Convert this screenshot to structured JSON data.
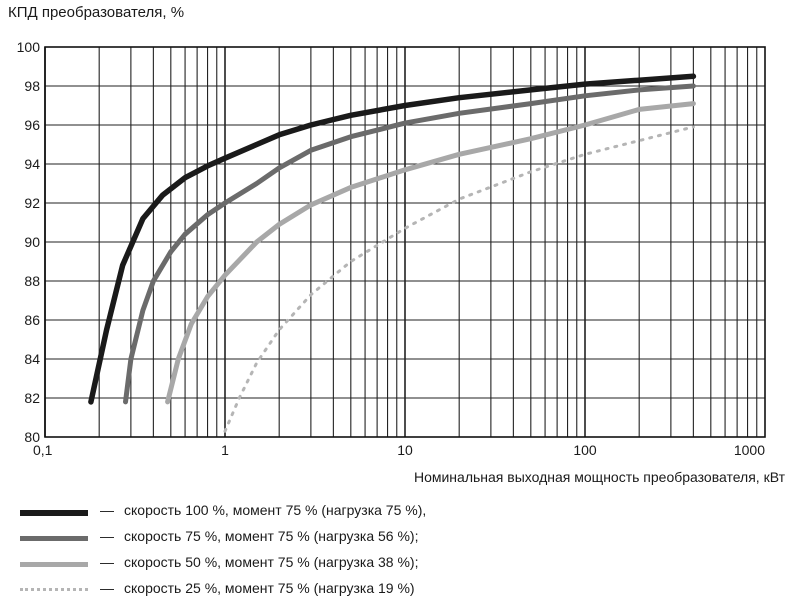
{
  "chart_data": {
    "type": "line",
    "title": "КПД преобразователя, %",
    "xlabel": "Номинальная выходная мощность преобразователя, кВт",
    "ylabel": "КПД преобразователя, %",
    "x_scale": "log",
    "xlim": [
      0.1,
      1000
    ],
    "ylim": [
      80,
      100
    ],
    "x_ticks": [
      "0,1",
      "1",
      "10",
      "100",
      "1000"
    ],
    "y_ticks": [
      "80",
      "82",
      "84",
      "86",
      "88",
      "90",
      "92",
      "94",
      "96",
      "98",
      "100"
    ],
    "grid": true,
    "legend_position": "bottom",
    "series": [
      {
        "name": "скорость  100 %, момент 75 % (нагрузка 75 %),",
        "color": "#1a1a1a",
        "style": "solid-thick",
        "x": [
          0.18,
          0.22,
          0.27,
          0.35,
          0.45,
          0.6,
          0.8,
          1,
          1.5,
          2,
          3,
          5,
          10,
          20,
          50,
          100,
          200,
          400
        ],
        "y": [
          81.8,
          85.5,
          88.8,
          91.2,
          92.4,
          93.3,
          93.9,
          94.3,
          95.0,
          95.5,
          96.0,
          96.5,
          97.0,
          97.4,
          97.8,
          98.1,
          98.3,
          98.5
        ]
      },
      {
        "name": "скорость  75 %, момент 75 % (нагрузка 56 %);",
        "color": "#6b6b6b",
        "style": "solid",
        "x": [
          0.28,
          0.3,
          0.35,
          0.4,
          0.5,
          0.6,
          0.8,
          1,
          1.5,
          2,
          3,
          5,
          10,
          20,
          50,
          100,
          200,
          400
        ],
        "y": [
          81.8,
          84.0,
          86.5,
          88.0,
          89.5,
          90.4,
          91.4,
          92.0,
          93.0,
          93.8,
          94.7,
          95.4,
          96.1,
          96.6,
          97.1,
          97.5,
          97.8,
          98.0
        ]
      },
      {
        "name": "скорость  50 %, момент 75 % (нагрузка 38 %);",
        "color": "#a8a8a8",
        "style": "solid",
        "x": [
          0.48,
          0.55,
          0.65,
          0.8,
          1,
          1.5,
          2,
          3,
          5,
          10,
          20,
          50,
          100,
          200,
          400
        ],
        "y": [
          81.8,
          84.0,
          85.8,
          87.2,
          88.3,
          90.0,
          90.9,
          91.9,
          92.8,
          93.7,
          94.5,
          95.3,
          96.0,
          96.8,
          97.1
        ]
      },
      {
        "name": "скорость  25 %, момент 75 % (нагрузка 19 %)",
        "color": "#b5b5b5",
        "style": "dotted",
        "x": [
          1,
          1.2,
          1.5,
          2,
          3,
          5,
          10,
          20,
          50,
          100,
          200,
          400
        ],
        "y": [
          80.3,
          82.0,
          83.8,
          85.5,
          87.3,
          89.0,
          90.7,
          92.2,
          93.6,
          94.5,
          95.2,
          95.9
        ]
      }
    ]
  },
  "legend": {
    "dash": "—"
  }
}
